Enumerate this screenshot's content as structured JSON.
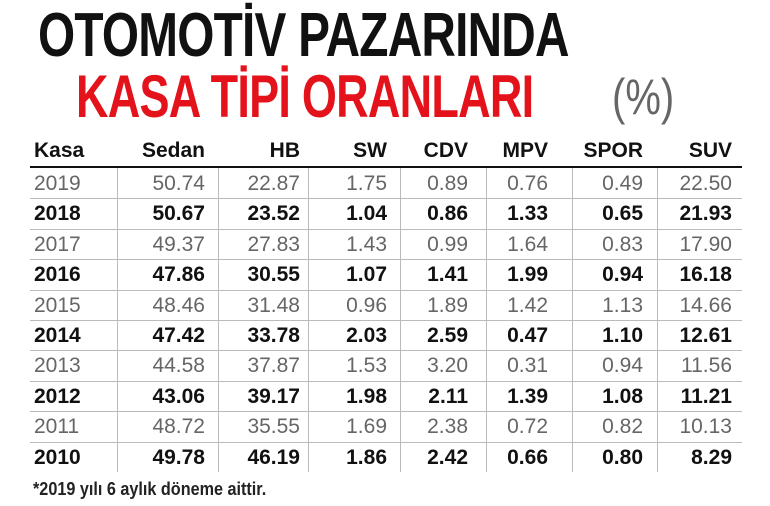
{
  "title": {
    "line1": "OTOMOTİV PAZARINDA",
    "line2": "KASA TİPİ ORANLARI",
    "unit": "(%)"
  },
  "table": {
    "header": [
      "Kasa",
      "Sedan",
      "HB",
      "SW",
      "CDV",
      "MPV",
      "SPOR",
      "SUV"
    ],
    "rows": [
      [
        "2019",
        "50.74",
        "22.87",
        "1.75",
        "0.89",
        "0.76",
        "0.49",
        "22.50"
      ],
      [
        "2018",
        "50.67",
        "23.52",
        "1.04",
        "0.86",
        "1.33",
        "0.65",
        "21.93"
      ],
      [
        "2017",
        "49.37",
        "27.83",
        "1.43",
        "0.99",
        "1.64",
        "0.83",
        "17.90"
      ],
      [
        "2016",
        "47.86",
        "30.55",
        "1.07",
        "1.41",
        "1.99",
        "0.94",
        "16.18"
      ],
      [
        "2015",
        "48.46",
        "31.48",
        "0.96",
        "1.89",
        "1.42",
        "1.13",
        "14.66"
      ],
      [
        "2014",
        "47.42",
        "33.78",
        "2.03",
        "2.59",
        "0.47",
        "1.10",
        "12.61"
      ],
      [
        "2013",
        "44.58",
        "37.87",
        "1.53",
        "3.20",
        "0.31",
        "0.94",
        "11.56"
      ],
      [
        "2012",
        "43.06",
        "39.17",
        "1.98",
        "2.11",
        "1.39",
        "1.08",
        "11.21"
      ],
      [
        "2011",
        "48.72",
        "35.55",
        "1.69",
        "2.38",
        "0.72",
        "0.82",
        "10.13"
      ],
      [
        "2010",
        "49.78",
        "46.19",
        "1.86",
        "2.42",
        "0.66",
        "0.80",
        "8.29"
      ]
    ]
  },
  "footnote": "*2019 yılı 6 aylık döneme aittir."
}
